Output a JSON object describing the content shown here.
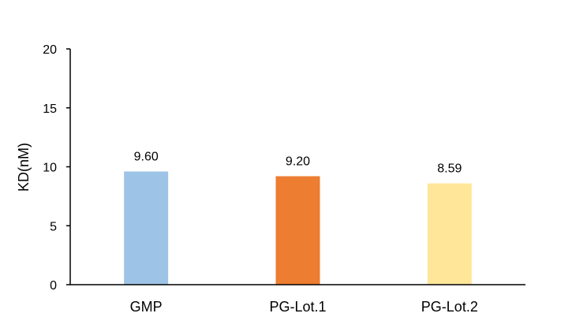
{
  "chart_data": {
    "type": "bar",
    "title": "",
    "xlabel": "",
    "ylabel": "KD(nM)",
    "ylim": [
      0,
      20
    ],
    "yticks": [
      0,
      5,
      10,
      15,
      20
    ],
    "categories": [
      "GMP",
      "PG-Lot.1",
      "PG-Lot.2"
    ],
    "values": [
      9.6,
      9.2,
      8.59
    ],
    "data_labels": [
      "9.60",
      "9.20",
      "8.59"
    ],
    "colors": [
      "#9DC3E6",
      "#ED7D31",
      "#FFE699"
    ],
    "grid": false,
    "legend": "none"
  }
}
